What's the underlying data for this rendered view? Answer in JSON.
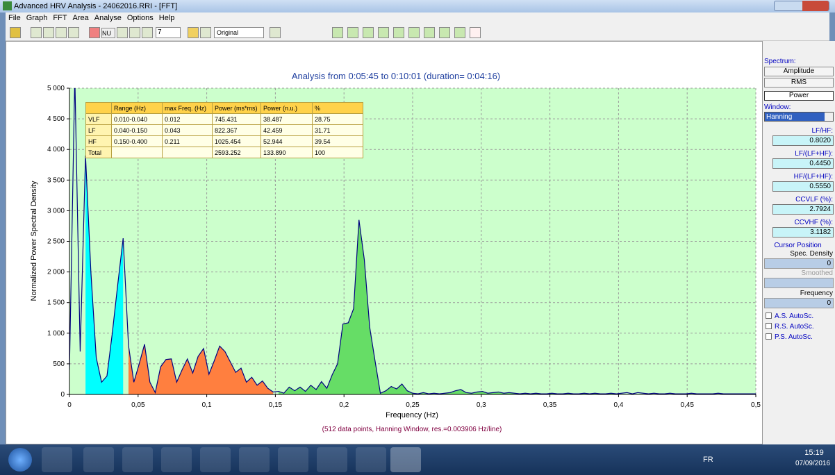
{
  "window": {
    "title": "Advanced HRV Analysis - 24062016.RRI - [FFT]"
  },
  "menu": [
    "File",
    "Graph",
    "FFT",
    "Area",
    "Analyse",
    "Options",
    "Help"
  ],
  "toolbar": {
    "nu": "NU",
    "spin": "7",
    "mode": "Original"
  },
  "chart_data": {
    "type": "area",
    "title": "Analysis from 0:05:45 to 0:10:01 (duration= 0:04:16)",
    "xlabel": "Frequency (Hz)",
    "ylabel": "Normalized Power Spectral Density",
    "subtitle": "(512 data points, Hanning Window, res.=0.003906 Hz/line)",
    "color": "#000080",
    "plot_background": "#ccffcc",
    "band_colors": [
      "#00ffff",
      "#ff7f3f",
      "#66dd66"
    ],
    "grid": true,
    "xlim": [
      0,
      0.5
    ],
    "ylim": [
      0,
      5000
    ],
    "xticks": [
      0,
      {
        "value": 0.05,
        "label": "0,05"
      },
      {
        "value": 0.1,
        "label": "0,1"
      },
      {
        "value": 0.15,
        "label": "0,15"
      },
      {
        "value": 0.2,
        "label": "0,2"
      },
      {
        "value": 0.25,
        "label": "0,25"
      },
      {
        "value": 0.3,
        "label": "0,3"
      },
      {
        "value": 0.35,
        "label": "0,35"
      },
      {
        "value": 0.4,
        "label": "0,4"
      },
      {
        "value": 0.45,
        "label": "0,45"
      },
      {
        "value": 0.5,
        "label": "0,5"
      }
    ],
    "yticks": [
      0,
      500,
      {
        "value": 1000,
        "label": "1 000"
      },
      {
        "value": 1500,
        "label": "1 500"
      },
      {
        "value": 2000,
        "label": "2 000"
      },
      {
        "value": 2500,
        "label": "2 500"
      },
      {
        "value": 3000,
        "label": "3 000"
      },
      {
        "value": 3500,
        "label": "3 500"
      },
      {
        "value": 4000,
        "label": "4 000"
      },
      {
        "value": 4500,
        "label": "4 500"
      },
      {
        "value": 5000,
        "label": "5 000"
      }
    ],
    "x": [
      0,
      0.0039,
      0.0078,
      0.0117,
      0.0156,
      0.0195,
      0.0234,
      0.0273,
      0.0312,
      0.0352,
      0.0391,
      0.043,
      0.0469,
      0.0508,
      0.0547,
      0.0586,
      0.0625,
      0.0664,
      0.0703,
      0.0742,
      0.0781,
      0.082,
      0.0859,
      0.0898,
      0.0937,
      0.0977,
      0.1016,
      0.1055,
      0.1094,
      0.1133,
      0.1172,
      0.1211,
      0.125,
      0.1289,
      0.1328,
      0.1367,
      0.1406,
      0.1445,
      0.1484,
      0.1523,
      0.1562,
      0.1601,
      0.1641,
      0.168,
      0.1719,
      0.1758,
      0.1797,
      0.1836,
      0.1875,
      0.1914,
      0.1953,
      0.1992,
      0.2031,
      0.207,
      0.2109,
      0.2148,
      0.2187,
      0.2226,
      0.2265,
      0.2305,
      0.2344,
      0.2383,
      0.2422,
      0.2461,
      0.25,
      0.2539,
      0.2578,
      0.2617,
      0.2656,
      0.2695,
      0.2734,
      0.2773,
      0.2812,
      0.2851,
      0.289,
      0.2929,
      0.2969,
      0.3008,
      0.3047,
      0.3086,
      0.3125,
      0.3164,
      0.3203,
      0.3242,
      0.3281,
      0.332,
      0.3359,
      0.3398,
      0.3437,
      0.3476,
      0.3515,
      0.3554,
      0.3594,
      0.3633,
      0.3672,
      0.3711,
      0.375,
      0.3789,
      0.3828,
      0.3867,
      0.3906,
      0.3945,
      0.3984,
      0.4023,
      0.4062,
      0.4101,
      0.414,
      0.4179,
      0.4219,
      0.4258,
      0.4297,
      0.4336,
      0.4375,
      0.4414,
      0.4453,
      0.4492,
      0.4531,
      0.457,
      0.4609,
      0.4648,
      0.4687,
      0.4726,
      0.4765,
      0.4804,
      0.4844,
      0.4883,
      0.4922,
      0.4961,
      0.5
    ],
    "values": [
      400,
      5200,
      700,
      3900,
      2000,
      600,
      200,
      300,
      1000,
      1800,
      2550,
      800,
      200,
      500,
      820,
      200,
      30,
      450,
      570,
      580,
      200,
      400,
      580,
      350,
      620,
      750,
      330,
      550,
      790,
      700,
      530,
      360,
      430,
      200,
      280,
      150,
      220,
      100,
      40,
      50,
      20,
      120,
      60,
      120,
      50,
      150,
      80,
      210,
      100,
      320,
      500,
      1150,
      1170,
      1400,
      2850,
      2200,
      1100,
      550,
      20,
      60,
      130,
      90,
      170,
      60,
      20,
      10,
      30,
      10,
      20,
      10,
      20,
      30,
      60,
      80,
      30,
      20,
      40,
      50,
      20,
      30,
      40,
      20,
      30,
      20,
      10,
      20,
      10,
      20,
      10,
      10,
      20,
      10,
      10,
      20,
      10,
      10,
      20,
      10,
      20,
      10,
      10,
      20,
      10,
      20,
      30,
      10,
      30,
      20,
      10,
      20,
      10,
      10,
      20,
      10,
      10,
      10,
      20,
      10,
      10,
      10,
      10,
      20,
      10,
      10,
      10,
      10,
      10,
      10,
      10
    ],
    "table": {
      "header": [
        "Range (Hz)",
        "max Freq. (Hz)",
        "Power (ms*ms)",
        "Power (n.u.)",
        "%"
      ],
      "rows": [
        [
          "VLF",
          "0.010-0.040",
          "0.012",
          "745.431",
          "38.487",
          "28.75"
        ],
        [
          "LF",
          "0.040-0.150",
          "0.043",
          "822.367",
          "42.459",
          "31.71"
        ],
        [
          "HF",
          "0.150-0.400",
          "0.211",
          "1025.454",
          "52.944",
          "39.54"
        ],
        [
          "Total",
          null,
          null,
          "2593.252",
          "133.890",
          "100"
        ]
      ]
    }
  },
  "sidebar": {
    "spectrum_label": "Spectrum:",
    "buttons": [
      "Amplitude",
      "RMS",
      "Power"
    ],
    "window_label": "Window:",
    "window_value": "Hanning",
    "metrics": [
      {
        "label": "LF/HF:",
        "value": "0.8020"
      },
      {
        "label": "LF/(LF+HF):",
        "value": "0.4450"
      },
      {
        "label": "HF/(LF+HF):",
        "value": "0.5550"
      },
      {
        "label": "CCVLF (%):",
        "value": "2.7924"
      },
      {
        "label": "CCVHF (%):",
        "value": "3.1182"
      }
    ],
    "cursor_label": "Cursor Position",
    "spec_density_label": "Spec. Density",
    "spec_density_value": "0",
    "smoothed_label": "Smoothed",
    "frequency_label": "Frequency",
    "frequency_value": "0",
    "checkboxes": [
      "A.S. AutoSc.",
      "R.S. AutoSc.",
      "P.S. AutoSc."
    ]
  },
  "taskbar": {
    "lang": "FR",
    "time": "15:19",
    "date": "07/09/2016"
  }
}
